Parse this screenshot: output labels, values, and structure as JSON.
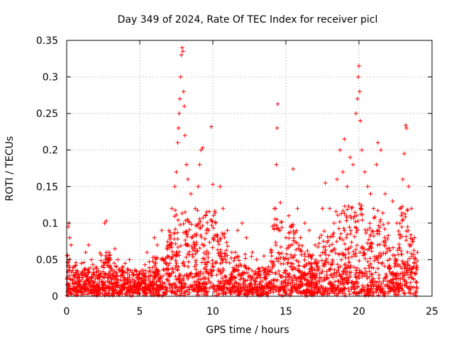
{
  "chart_data": {
    "type": "scatter",
    "title": "Day 349 of 2024, Rate Of TEC Index for receiver picl",
    "xlabel": "GPS time / hours",
    "ylabel": "ROTI / TECUs",
    "xlim": [
      0,
      25
    ],
    "ylim": [
      0,
      0.35
    ],
    "xticks": [
      0,
      5,
      10,
      15,
      20,
      25
    ],
    "xtick_labels": [
      "0",
      "5",
      "10",
      "15",
      "20",
      "25"
    ],
    "yticks": [
      0,
      0.05,
      0.1,
      0.15,
      0.2,
      0.25,
      0.3,
      0.35
    ],
    "ytick_labels": [
      "0",
      "0.05",
      "0.1",
      "0.15",
      "0.2",
      "0.25",
      "0.3",
      "0.35"
    ],
    "grid": true,
    "marker": "plus",
    "colors": {
      "points": "#ff0000",
      "grid": "#a0a0a0",
      "axes": "#000000"
    },
    "series": [
      {
        "points": [
          [
            0.1,
            0.095
          ],
          [
            0.15,
            0.1
          ],
          [
            0.2,
            0.08
          ],
          [
            0.3,
            0.07
          ],
          [
            0.5,
            0.04
          ],
          [
            0.8,
            0.03
          ],
          [
            1.0,
            0.045
          ],
          [
            1.3,
            0.06
          ],
          [
            1.5,
            0.07
          ],
          [
            1.7,
            0.05
          ],
          [
            2.0,
            0.04
          ],
          [
            2.3,
            0.03
          ],
          [
            2.6,
            0.1
          ],
          [
            2.7,
            0.103
          ],
          [
            2.9,
            0.06
          ],
          [
            3.3,
            0.065
          ],
          [
            3.5,
            0.05
          ],
          [
            3.8,
            0.04
          ],
          [
            4.0,
            0.045
          ],
          [
            4.3,
            0.05
          ],
          [
            4.6,
            0.03
          ],
          [
            5.0,
            0.03
          ],
          [
            5.5,
            0.06
          ],
          [
            6.0,
            0.08
          ],
          [
            6.2,
            0.07
          ],
          [
            6.5,
            0.09
          ],
          [
            7.0,
            0.09
          ],
          [
            7.2,
            0.12
          ],
          [
            7.4,
            0.15
          ],
          [
            7.5,
            0.17
          ],
          [
            7.6,
            0.21
          ],
          [
            7.65,
            0.23
          ],
          [
            7.7,
            0.25
          ],
          [
            7.75,
            0.27
          ],
          [
            7.8,
            0.3
          ],
          [
            7.85,
            0.33
          ],
          [
            7.9,
            0.34
          ],
          [
            7.95,
            0.335
          ],
          [
            8.0,
            0.28
          ],
          [
            8.05,
            0.26
          ],
          [
            8.1,
            0.22
          ],
          [
            8.2,
            0.18
          ],
          [
            8.3,
            0.16
          ],
          [
            8.5,
            0.14
          ],
          [
            8.8,
            0.12
          ],
          [
            9.0,
            0.15
          ],
          [
            9.1,
            0.18
          ],
          [
            9.2,
            0.2
          ],
          [
            9.3,
            0.203
          ],
          [
            9.5,
            0.11
          ],
          [
            9.7,
            0.09
          ],
          [
            9.9,
            0.232
          ],
          [
            10.0,
            0.153
          ],
          [
            10.2,
            0.1
          ],
          [
            10.5,
            0.15
          ],
          [
            10.7,
            0.12
          ],
          [
            11.0,
            0.09
          ],
          [
            11.3,
            0.06
          ],
          [
            11.7,
            0.09
          ],
          [
            12.0,
            0.1
          ],
          [
            12.3,
            0.08
          ],
          [
            12.7,
            0.06
          ],
          [
            13.0,
            0.05
          ],
          [
            13.5,
            0.055
          ],
          [
            13.8,
            0.04
          ],
          [
            14.0,
            0.06
          ],
          [
            14.3,
            0.12
          ],
          [
            14.35,
            0.18
          ],
          [
            14.4,
            0.23
          ],
          [
            14.45,
            0.263
          ],
          [
            14.6,
            0.09
          ],
          [
            14.9,
            0.05
          ],
          [
            15.0,
            0.08
          ],
          [
            15.2,
            0.11
          ],
          [
            15.5,
            0.174
          ],
          [
            15.8,
            0.12
          ],
          [
            16.0,
            0.08
          ],
          [
            16.3,
            0.1
          ],
          [
            16.6,
            0.09
          ],
          [
            17.0,
            0.07
          ],
          [
            17.3,
            0.08
          ],
          [
            17.5,
            0.12
          ],
          [
            17.7,
            0.155
          ],
          [
            18.0,
            0.12
          ],
          [
            18.3,
            0.1
          ],
          [
            18.5,
            0.16
          ],
          [
            18.7,
            0.2
          ],
          [
            18.9,
            0.17
          ],
          [
            19.0,
            0.215
          ],
          [
            19.2,
            0.15
          ],
          [
            19.4,
            0.19
          ],
          [
            19.6,
            0.18
          ],
          [
            19.8,
            0.25
          ],
          [
            19.9,
            0.27
          ],
          [
            19.95,
            0.3
          ],
          [
            20.0,
            0.315
          ],
          [
            20.05,
            0.28
          ],
          [
            20.1,
            0.24
          ],
          [
            20.2,
            0.2
          ],
          [
            20.4,
            0.17
          ],
          [
            20.6,
            0.15
          ],
          [
            20.8,
            0.14
          ],
          [
            21.0,
            0.12
          ],
          [
            21.2,
            0.18
          ],
          [
            21.3,
            0.21
          ],
          [
            21.5,
            0.2
          ],
          [
            21.8,
            0.14
          ],
          [
            22.0,
            0.1
          ],
          [
            22.3,
            0.13
          ],
          [
            22.6,
            0.1
          ],
          [
            22.8,
            0.12
          ],
          [
            23.0,
            0.16
          ],
          [
            23.1,
            0.195
          ],
          [
            23.2,
            0.234
          ],
          [
            23.25,
            0.23
          ],
          [
            23.4,
            0.15
          ],
          [
            23.6,
            0.12
          ],
          [
            23.8,
            0.08
          ],
          [
            24.0,
            0.06
          ]
        ]
      }
    ]
  }
}
